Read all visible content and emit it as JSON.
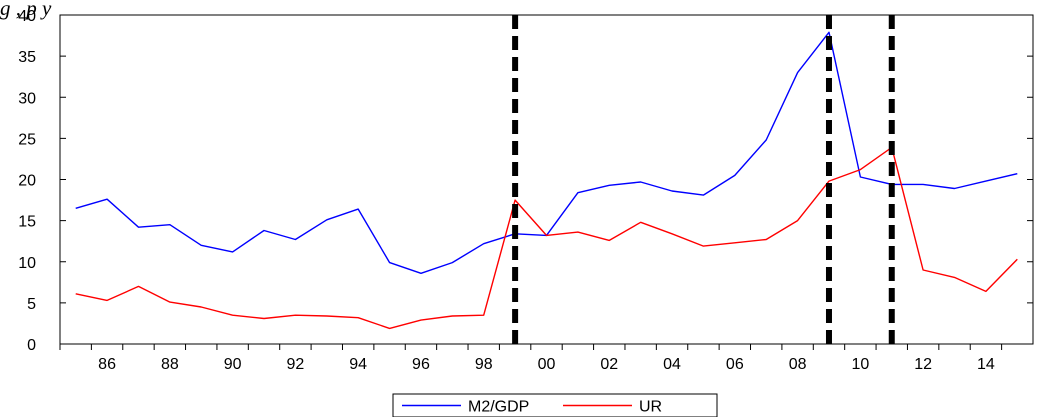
{
  "caption": "g             ,                  p y",
  "chart_data": {
    "type": "line",
    "title": "",
    "xlabel": "",
    "ylabel": "",
    "x": [
      1985,
      1986,
      1987,
      1988,
      1989,
      1990,
      1991,
      1992,
      1993,
      1994,
      1995,
      1996,
      1997,
      1998,
      1999,
      2000,
      2001,
      2002,
      2003,
      2004,
      2005,
      2006,
      2007,
      2008,
      2009,
      2010,
      2011,
      2012,
      2013,
      2014,
      2015
    ],
    "xlim": [
      1984.5,
      2015.5
    ],
    "ylim": [
      0,
      40
    ],
    "y_ticks": [
      0,
      5,
      10,
      15,
      20,
      25,
      30,
      35,
      40
    ],
    "y_tick_labels": [
      "0",
      "5",
      "10",
      "15",
      "20",
      "25",
      "30",
      "35",
      "40"
    ],
    "x_ticks": [
      1986,
      1988,
      1990,
      1992,
      1994,
      1996,
      1998,
      2000,
      2002,
      2004,
      2006,
      2008,
      2010,
      2012,
      2014
    ],
    "x_tick_labels": [
      "86",
      "88",
      "90",
      "92",
      "94",
      "96",
      "98",
      "00",
      "02",
      "04",
      "06",
      "08",
      "10",
      "12",
      "14"
    ],
    "series": [
      {
        "name": "M2/GDP",
        "color": "#0000ff",
        "values": [
          16.5,
          17.6,
          14.2,
          14.5,
          12.0,
          11.2,
          13.8,
          12.7,
          15.1,
          16.4,
          9.9,
          8.6,
          9.9,
          12.2,
          13.4,
          13.2,
          18.4,
          19.3,
          19.7,
          18.6,
          18.1,
          20.5,
          24.8,
          33.0,
          37.9,
          20.3,
          19.4,
          19.4,
          18.9,
          19.8,
          20.7
        ]
      },
      {
        "name": "UR",
        "color": "#ff0000",
        "values": [
          6.1,
          5.3,
          7.0,
          5.1,
          4.5,
          3.5,
          3.1,
          3.5,
          3.4,
          3.2,
          1.9,
          2.9,
          3.4,
          3.5,
          17.5,
          13.2,
          13.6,
          12.6,
          14.8,
          13.4,
          11.9,
          12.3,
          12.7,
          15.0,
          19.8,
          21.2,
          23.9,
          9.0,
          8.1,
          6.4,
          10.3
        ]
      }
    ],
    "vertical_markers": [
      1999,
      2009,
      2011
    ],
    "marker_style": "thick black dashed",
    "legend": [
      "M2/GDP",
      "UR"
    ],
    "legend_position": "bottom-center",
    "grid": false
  }
}
